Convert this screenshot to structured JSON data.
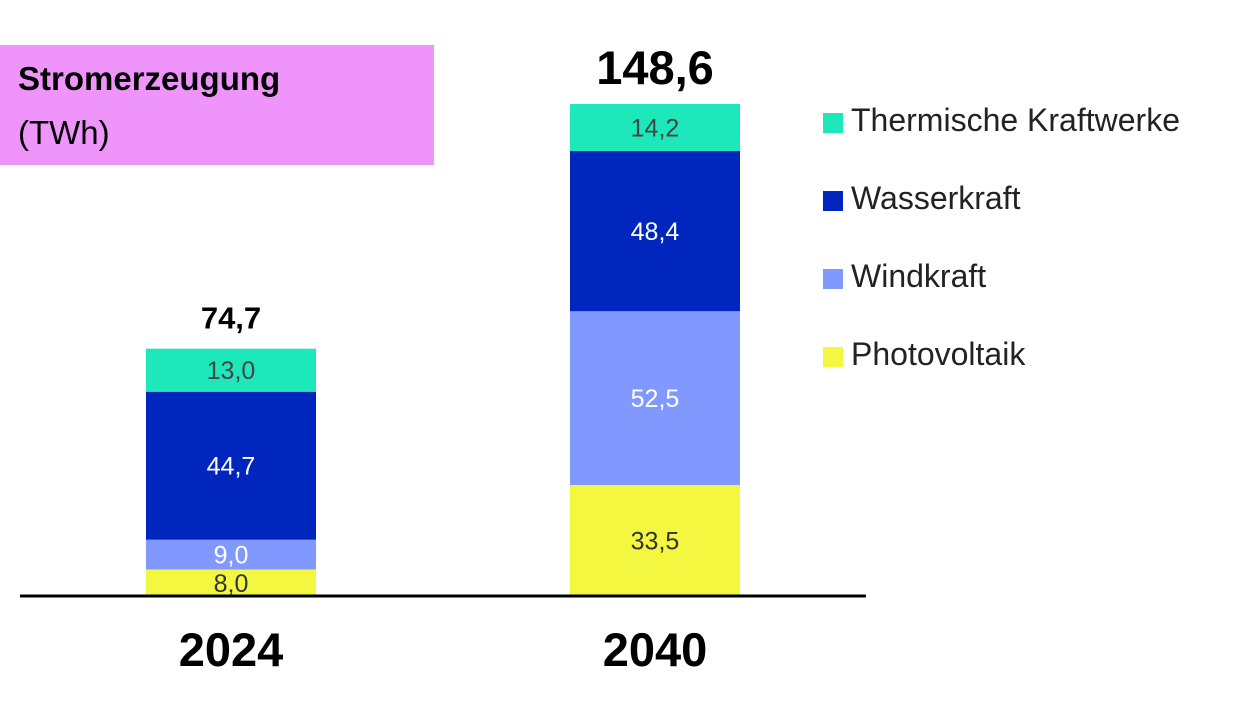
{
  "title": "Stromerzeugung",
  "subtitle": "(TWh)",
  "chart_data": {
    "type": "bar",
    "stacked": true,
    "categories": [
      "2024",
      "2040"
    ],
    "totals": [
      "74,7",
      "148,6"
    ],
    "series": [
      {
        "name": "Photovoltaik",
        "color": "#f4f740",
        "text_color": "#333333",
        "values": [
          8.0,
          33.5
        ],
        "labels": [
          "8,0",
          "33,5"
        ]
      },
      {
        "name": "Windkraft",
        "color": "#8199ff",
        "text_color": "#ffffff",
        "values": [
          9.0,
          52.5
        ],
        "labels": [
          "9,0",
          "52,5"
        ]
      },
      {
        "name": "Wasserkraft",
        "color": "#0026be",
        "text_color": "#ffffff",
        "values": [
          44.7,
          48.4
        ],
        "labels": [
          "44,7",
          "48,4"
        ]
      },
      {
        "name": "Thermische Kraftwerke",
        "color": "#1de8bc",
        "text_color": "#444444",
        "values": [
          13.0,
          14.2
        ],
        "labels": [
          "13,0",
          "14,2"
        ]
      }
    ],
    "legend_order": [
      "Thermische Kraftwerke",
      "Wasserkraft",
      "Windkraft",
      "Photovoltaik"
    ],
    "ylim": [
      0,
      150
    ],
    "grid": false,
    "legend_position": "right"
  }
}
